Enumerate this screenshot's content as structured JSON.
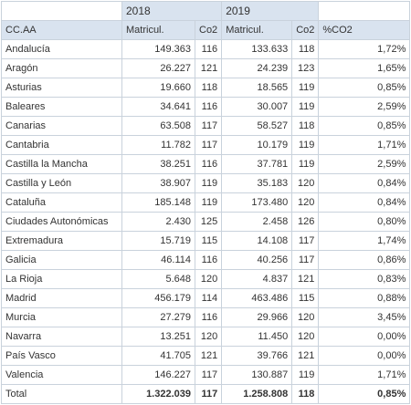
{
  "years": [
    "2018",
    "2019"
  ],
  "headers": [
    "CC.AA",
    "Matricul.",
    "Co2",
    "Matricul.",
    "Co2",
    "%CO2"
  ],
  "rows": [
    {
      "region": "Andalucía",
      "m2018": "149.363",
      "co2_2018": "116",
      "m2019": "133.633",
      "co2_2019": "118",
      "pct": "1,72%"
    },
    {
      "region": "Aragón",
      "m2018": "26.227",
      "co2_2018": "121",
      "m2019": "24.239",
      "co2_2019": "123",
      "pct": "1,65%"
    },
    {
      "region": "Asturias",
      "m2018": "19.660",
      "co2_2018": "118",
      "m2019": "18.565",
      "co2_2019": "119",
      "pct": "0,85%"
    },
    {
      "region": "Baleares",
      "m2018": "34.641",
      "co2_2018": "116",
      "m2019": "30.007",
      "co2_2019": "119",
      "pct": "2,59%"
    },
    {
      "region": "Canarias",
      "m2018": "63.508",
      "co2_2018": "117",
      "m2019": "58.527",
      "co2_2019": "118",
      "pct": "0,85%"
    },
    {
      "region": "Cantabria",
      "m2018": "11.782",
      "co2_2018": "117",
      "m2019": "10.179",
      "co2_2019": "119",
      "pct": "1,71%"
    },
    {
      "region": "Castilla la Mancha",
      "m2018": "38.251",
      "co2_2018": "116",
      "m2019": "37.781",
      "co2_2019": "119",
      "pct": "2,59%"
    },
    {
      "region": "Castilla y León",
      "m2018": "38.907",
      "co2_2018": "119",
      "m2019": "35.183",
      "co2_2019": "120",
      "pct": "0,84%"
    },
    {
      "region": "Cataluña",
      "m2018": "185.148",
      "co2_2018": "119",
      "m2019": "173.480",
      "co2_2019": "120",
      "pct": "0,84%"
    },
    {
      "region": "Ciudades Autonómicas",
      "m2018": "2.430",
      "co2_2018": "125",
      "m2019": "2.458",
      "co2_2019": "126",
      "pct": "0,80%"
    },
    {
      "region": "Extremadura",
      "m2018": "15.719",
      "co2_2018": "115",
      "m2019": "14.108",
      "co2_2019": "117",
      "pct": "1,74%"
    },
    {
      "region": "Galicia",
      "m2018": "46.114",
      "co2_2018": "116",
      "m2019": "40.256",
      "co2_2019": "117",
      "pct": "0,86%"
    },
    {
      "region": "La Rioja",
      "m2018": "5.648",
      "co2_2018": "120",
      "m2019": "4.837",
      "co2_2019": "121",
      "pct": "0,83%"
    },
    {
      "region": "Madrid",
      "m2018": "456.179",
      "co2_2018": "114",
      "m2019": "463.486",
      "co2_2019": "115",
      "pct": "0,88%"
    },
    {
      "region": "Murcia",
      "m2018": "27.279",
      "co2_2018": "116",
      "m2019": "29.966",
      "co2_2019": "120",
      "pct": "3,45%"
    },
    {
      "region": "Navarra",
      "m2018": "13.251",
      "co2_2018": "120",
      "m2019": "11.450",
      "co2_2019": "120",
      "pct": "0,00%"
    },
    {
      "region": "País Vasco",
      "m2018": "41.705",
      "co2_2018": "121",
      "m2019": "39.766",
      "co2_2019": "121",
      "pct": "0,00%"
    },
    {
      "region": "Valencia",
      "m2018": "146.227",
      "co2_2018": "117",
      "m2019": "130.887",
      "co2_2019": "119",
      "pct": "1,71%"
    }
  ],
  "total": {
    "label": "Total",
    "m2018": "1.322.039",
    "co2_2018": "117",
    "m2019": "1.258.808",
    "co2_2019": "118",
    "pct": "0,85%"
  },
  "colors": {
    "header_bg": "#d9e3ef",
    "border": "#c9d2dc",
    "text": "#333333"
  }
}
